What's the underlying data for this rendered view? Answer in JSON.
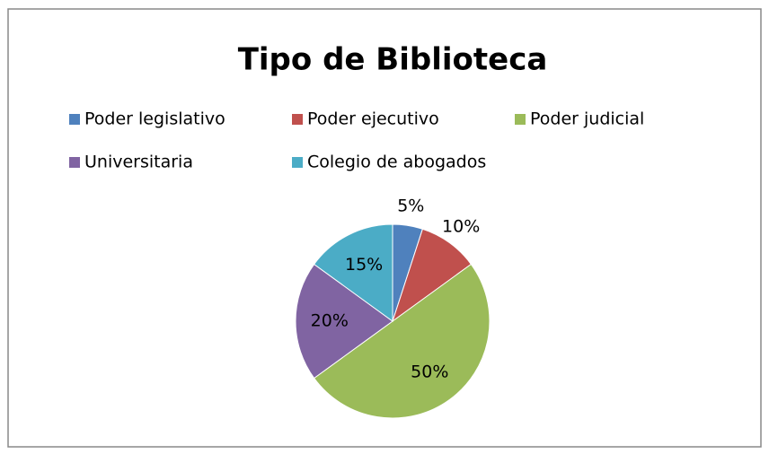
{
  "chart_data": {
    "type": "pie",
    "title": "Tipo de Biblioteca",
    "categories": [
      "Poder legislativo",
      "Poder ejecutivo",
      "Poder judicial",
      "Universitaria",
      "Colegio de abogados"
    ],
    "values": [
      5,
      10,
      50,
      20,
      15
    ],
    "value_labels": [
      "5%",
      "10%",
      "50%",
      "20%",
      "15%"
    ],
    "colors": [
      "#4f81bd",
      "#c0504d",
      "#9bbb59",
      "#8064a2",
      "#4bacc6"
    ]
  }
}
